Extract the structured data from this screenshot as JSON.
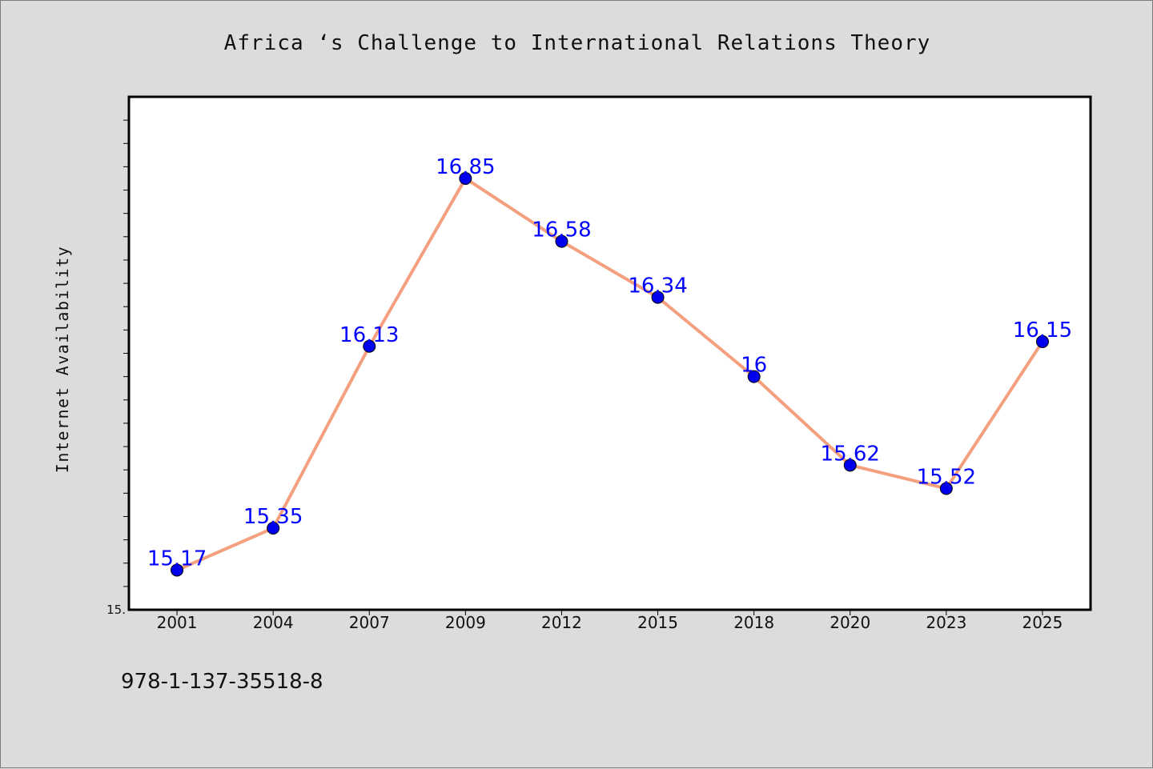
{
  "chart_data": {
    "type": "line",
    "title": "Africa ‘s Challenge to International Relations Theory",
    "xlabel": "",
    "ylabel": "Internet Availability",
    "categories": [
      "2001",
      "2004",
      "2007",
      "2009",
      "2012",
      "2015",
      "2018",
      "2020",
      "2023",
      "2025"
    ],
    "series": [
      {
        "values": [
          15.17,
          15.35,
          16.13,
          16.85,
          16.58,
          16.34,
          16.0,
          15.62,
          15.52,
          16.15
        ]
      }
    ],
    "data_labels": [
      "15.17",
      "15.35",
      "16.13",
      "16.85",
      "16.58",
      "16.34",
      "16",
      "15.62",
      "15.52",
      "16.15"
    ],
    "ylim": [
      15.0,
      17.2
    ],
    "y_tick_label": "15.",
    "grid": false,
    "legend": "none",
    "colors": {
      "line": "#f4a07f",
      "marker": "#0000ee",
      "data_label": "#0000ff",
      "plot_background": "#ffffff",
      "page_background": "#dcdcdc"
    }
  },
  "footnote": "978-1-137-35518-8"
}
